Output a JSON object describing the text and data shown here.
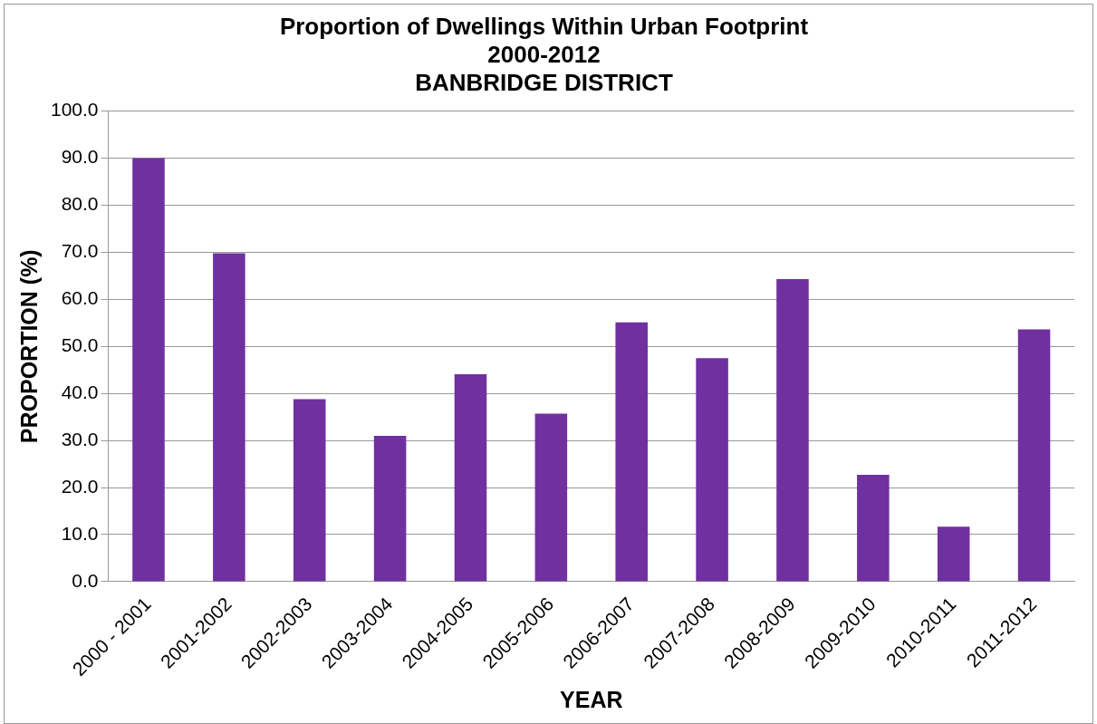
{
  "chart_data": {
    "type": "bar",
    "title": [
      "Proportion of Dwellings Within Urban Footprint",
      "2000-2012",
      "BANBRIDGE DISTRICT"
    ],
    "xlabel": "YEAR",
    "ylabel": "PROPORTION (%)",
    "categories": [
      "2000 - 2001",
      "2001-2002",
      "2002-2003",
      "2003-2004",
      "2004-2005",
      "2005-2006",
      "2006-2007",
      "2007-2008",
      "2008-2009",
      "2009-2010",
      "2010-2011",
      "2011-2012"
    ],
    "values": [
      90.0,
      69.8,
      38.8,
      31.0,
      44.1,
      35.7,
      55.1,
      47.5,
      64.3,
      22.7,
      11.7,
      53.6
    ],
    "color": "#7030a0",
    "ylim": [
      0,
      100
    ],
    "yticks": [
      {
        "value": 0,
        "label": "0.0"
      },
      {
        "value": 10,
        "label": "10.0"
      },
      {
        "value": 20,
        "label": "20.0"
      },
      {
        "value": 30,
        "label": "30.0"
      },
      {
        "value": 40,
        "label": "40.0"
      },
      {
        "value": 50,
        "label": "50.0"
      },
      {
        "value": 60,
        "label": "60.0"
      },
      {
        "value": 70,
        "label": "70.0"
      },
      {
        "value": 80,
        "label": "80.0"
      },
      {
        "value": 90,
        "label": "90.0"
      },
      {
        "value": 100,
        "label": "100.0"
      }
    ],
    "grid": "y",
    "legend": false
  }
}
